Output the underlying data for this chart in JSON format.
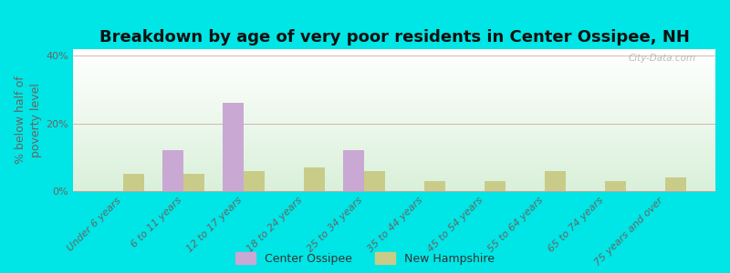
{
  "categories": [
    "Under 6 years",
    "6 to 11 years",
    "12 to 17 years",
    "18 to 24 years",
    "25 to 34 years",
    "35 to 44 years",
    "45 to 54 years",
    "55 to 64 years",
    "65 to 74 years",
    "75 years and over"
  ],
  "center_ossipee": [
    0,
    12,
    26,
    0,
    12,
    0,
    0,
    0,
    0,
    0
  ],
  "new_hampshire": [
    5,
    5,
    6,
    7,
    6,
    3,
    3,
    6,
    3,
    4
  ],
  "bar_color_ossipee": "#c9a8d4",
  "bar_color_nh": "#c8cc88",
  "title": "Breakdown by age of very poor residents in Center Ossipee, NH",
  "ylabel": "% below half of\npoverty level",
  "ylim": [
    0,
    42
  ],
  "yticks": [
    0,
    20,
    40
  ],
  "ytick_labels": [
    "0%",
    "20%",
    "40%"
  ],
  "outer_background": "#00e5e5",
  "legend_ossipee": "Center Ossipee",
  "legend_nh": "New Hampshire",
  "title_fontsize": 13,
  "axis_label_fontsize": 9,
  "tick_fontsize": 8,
  "bar_width": 0.35
}
